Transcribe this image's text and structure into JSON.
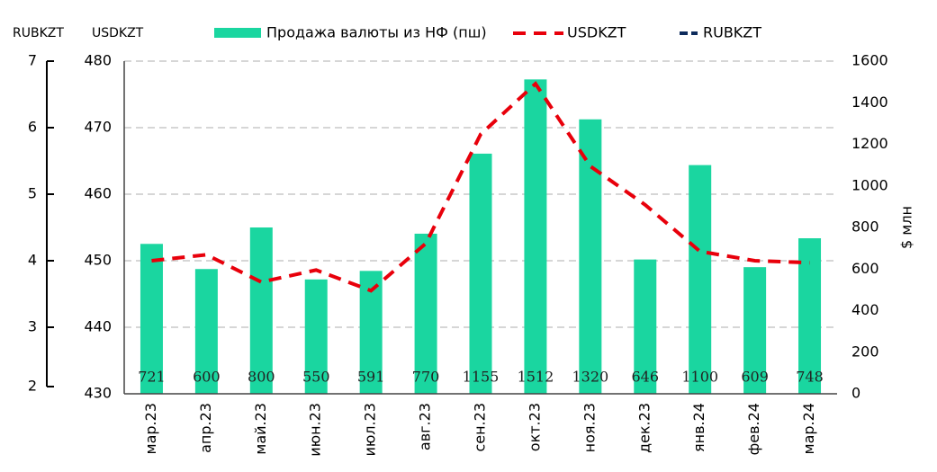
{
  "chart_data": {
    "type": "bar",
    "categories": [
      "мар.23",
      "апр.23",
      "май.23",
      "июн.23",
      "июл.23",
      "авг.23",
      "сен.23",
      "окт.23",
      "ноя.23",
      "дек.23",
      "янв.24",
      "фев.24",
      "мар.24"
    ],
    "series": [
      {
        "name": "Продажа валюты из НФ (пш)",
        "type": "bar",
        "axis": "y2",
        "color": "#1ad6a0",
        "values": [
          721,
          600,
          800,
          550,
          591,
          770,
          1155,
          1512,
          1320,
          646,
          1100,
          609,
          748
        ]
      },
      {
        "name": "USDKZT",
        "type": "line",
        "axis": "y",
        "color": "#e8000b",
        "values": [
          450.0,
          450.9,
          446.8,
          448.6,
          445.5,
          452.6,
          469.0,
          476.6,
          464.2,
          458.4,
          451.4,
          450.0,
          449.7
        ]
      },
      {
        "name": "RUBKZT",
        "type": "line",
        "axis": "y3",
        "color": "#0d2b5c",
        "values": [
          null,
          null,
          null,
          null,
          null,
          null,
          null,
          null,
          null,
          null,
          null,
          null,
          null
        ]
      }
    ],
    "ylabel": "USDKZT",
    "ylim": [
      430,
      480
    ],
    "yticks": [
      430,
      440,
      450,
      460,
      470,
      480
    ],
    "y2label": "$ млн",
    "y2lim": [
      0,
      1600
    ],
    "y2ticks": [
      0,
      200,
      400,
      600,
      800,
      1000,
      1200,
      1400,
      1600
    ],
    "y3label": "RUBKZT",
    "y3lim": [
      2,
      7
    ],
    "y3ticks": [
      2,
      3,
      4,
      5,
      6,
      7
    ],
    "grid": true
  }
}
